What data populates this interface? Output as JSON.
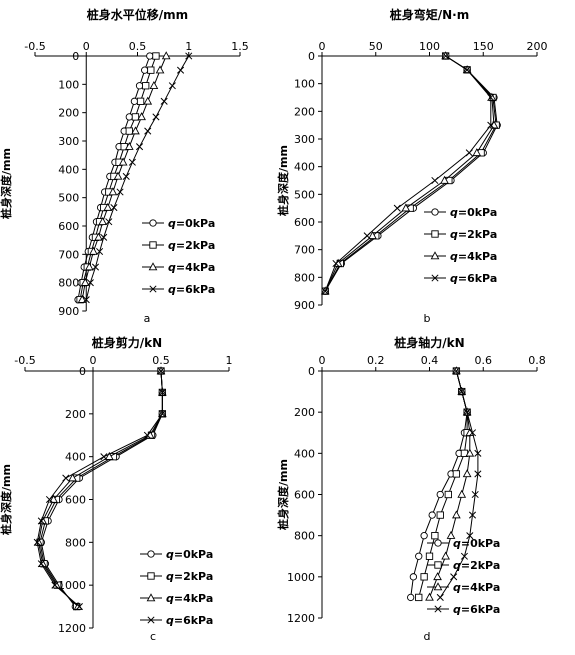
{
  "chart_data": [
    {
      "id": "a",
      "type": "line",
      "title": "桩身水平位移/mm",
      "ylabel": "桩身深度/mm",
      "sub_label": "a",
      "xlim": [
        -0.5,
        1.5
      ],
      "ylim": [
        0,
        900
      ],
      "x_ticks": [
        "-0.5",
        "0",
        "0.5",
        "1",
        "1.5"
      ],
      "y_ticks": [
        "0",
        "100",
        "200",
        "300",
        "400",
        "500",
        "600",
        "700",
        "800",
        "900"
      ],
      "series": [
        {
          "name": "q=0kPa",
          "marker": "circle",
          "points": [
            [
              0.62,
              0
            ],
            [
              0.57,
              50
            ],
            [
              0.52,
              105
            ],
            [
              0.47,
              160
            ],
            [
              0.42,
              215
            ],
            [
              0.37,
              265
            ],
            [
              0.32,
              320
            ],
            [
              0.28,
              375
            ],
            [
              0.23,
              425
            ],
            [
              0.18,
              480
            ],
            [
              0.14,
              535
            ],
            [
              0.1,
              585
            ],
            [
              0.06,
              640
            ],
            [
              0.02,
              690
            ],
            [
              -0.02,
              745
            ],
            [
              -0.05,
              800
            ],
            [
              -0.08,
              860
            ]
          ]
        },
        {
          "name": "q=2kPa",
          "marker": "square",
          "points": [
            [
              0.68,
              0
            ],
            [
              0.63,
              50
            ],
            [
              0.58,
              105
            ],
            [
              0.53,
              160
            ],
            [
              0.48,
              215
            ],
            [
              0.42,
              265
            ],
            [
              0.37,
              320
            ],
            [
              0.32,
              375
            ],
            [
              0.27,
              425
            ],
            [
              0.22,
              480
            ],
            [
              0.17,
              535
            ],
            [
              0.13,
              585
            ],
            [
              0.09,
              640
            ],
            [
              0.05,
              690
            ],
            [
              0.01,
              745
            ],
            [
              -0.03,
              800
            ],
            [
              -0.06,
              860
            ]
          ]
        },
        {
          "name": "q=4kPa",
          "marker": "triangle",
          "points": [
            [
              0.78,
              0
            ],
            [
              0.72,
              50
            ],
            [
              0.66,
              105
            ],
            [
              0.6,
              160
            ],
            [
              0.54,
              215
            ],
            [
              0.48,
              265
            ],
            [
              0.42,
              320
            ],
            [
              0.36,
              375
            ],
            [
              0.31,
              425
            ],
            [
              0.26,
              480
            ],
            [
              0.21,
              535
            ],
            [
              0.16,
              585
            ],
            [
              0.12,
              640
            ],
            [
              0.07,
              690
            ],
            [
              0.03,
              745
            ],
            [
              -0.01,
              800
            ],
            [
              -0.04,
              860
            ]
          ]
        },
        {
          "name": "q=6kPa",
          "marker": "cross",
          "points": [
            [
              1.0,
              0
            ],
            [
              0.92,
              50
            ],
            [
              0.84,
              105
            ],
            [
              0.76,
              160
            ],
            [
              0.68,
              215
            ],
            [
              0.6,
              265
            ],
            [
              0.52,
              320
            ],
            [
              0.45,
              375
            ],
            [
              0.39,
              425
            ],
            [
              0.33,
              480
            ],
            [
              0.27,
              535
            ],
            [
              0.22,
              585
            ],
            [
              0.17,
              640
            ],
            [
              0.13,
              690
            ],
            [
              0.09,
              745
            ],
            [
              0.04,
              800
            ],
            [
              0.0,
              860
            ]
          ]
        }
      ]
    },
    {
      "id": "b",
      "type": "line",
      "title": "桩身弯矩/N·m",
      "ylabel": "桩身深度/mm",
      "sub_label": "b",
      "xlim": [
        0,
        200
      ],
      "ylim": [
        0,
        900
      ],
      "x_ticks": [
        "0",
        "50",
        "100",
        "150",
        "200"
      ],
      "y_ticks": [
        "0",
        "100",
        "200",
        "300",
        "400",
        "500",
        "600",
        "700",
        "800",
        "900"
      ],
      "series": [
        {
          "name": "q=0kPa",
          "marker": "circle",
          "points": [
            [
              3,
              850
            ],
            [
              18,
              750
            ],
            [
              52,
              650
            ],
            [
              85,
              550
            ],
            [
              120,
              450
            ],
            [
              150,
              350
            ],
            [
              163,
              250
            ],
            [
              160,
              150
            ],
            [
              135,
              50
            ],
            [
              115,
              0
            ]
          ]
        },
        {
          "name": "q=2kPa",
          "marker": "square",
          "points": [
            [
              3,
              850
            ],
            [
              17,
              750
            ],
            [
              50,
              650
            ],
            [
              82,
              550
            ],
            [
              118,
              450
            ],
            [
              148,
              350
            ],
            [
              162,
              250
            ],
            [
              159,
              150
            ],
            [
              135,
              50
            ],
            [
              115,
              0
            ]
          ]
        },
        {
          "name": "q=4kPa",
          "marker": "triangle",
          "points": [
            [
              3,
              850
            ],
            [
              15,
              750
            ],
            [
              47,
              650
            ],
            [
              78,
              550
            ],
            [
              114,
              450
            ],
            [
              144,
              350
            ],
            [
              160,
              250
            ],
            [
              158,
              150
            ],
            [
              135,
              50
            ],
            [
              115,
              0
            ]
          ]
        },
        {
          "name": "q=6kPa",
          "marker": "cross",
          "points": [
            [
              3,
              850
            ],
            [
              13,
              750
            ],
            [
              42,
              650
            ],
            [
              70,
              550
            ],
            [
              105,
              450
            ],
            [
              137,
              350
            ],
            [
              157,
              250
            ],
            [
              157,
              150
            ],
            [
              135,
              50
            ],
            [
              115,
              0
            ]
          ]
        }
      ]
    },
    {
      "id": "c",
      "type": "line",
      "title": "桩身剪力/kN",
      "ylabel": "桩身深度/mm",
      "sub_label": "c",
      "xlim": [
        -0.5,
        1
      ],
      "ylim": [
        0,
        1200
      ],
      "x_ticks": [
        "-0.5",
        "0",
        "0.5",
        "1"
      ],
      "y_ticks": [
        "0",
        "200",
        "400",
        "600",
        "800",
        "1000",
        "1200"
      ],
      "series": [
        {
          "name": "q=0kPa",
          "marker": "circle",
          "points": [
            [
              0.5,
              0
            ],
            [
              0.51,
              100
            ],
            [
              0.51,
              200
            ],
            [
              0.44,
              300
            ],
            [
              0.17,
              400
            ],
            [
              -0.1,
              500
            ],
            [
              -0.25,
              600
            ],
            [
              -0.33,
              700
            ],
            [
              -0.38,
              800
            ],
            [
              -0.35,
              900
            ],
            [
              -0.25,
              1000
            ],
            [
              -0.13,
              1100
            ]
          ]
        },
        {
          "name": "q=2kPa",
          "marker": "square",
          "points": [
            [
              0.5,
              0
            ],
            [
              0.51,
              100
            ],
            [
              0.51,
              200
            ],
            [
              0.43,
              300
            ],
            [
              0.15,
              400
            ],
            [
              -0.12,
              500
            ],
            [
              -0.27,
              600
            ],
            [
              -0.35,
              700
            ],
            [
              -0.39,
              800
            ],
            [
              -0.36,
              900
            ],
            [
              -0.26,
              1000
            ],
            [
              -0.12,
              1100
            ]
          ]
        },
        {
          "name": "q=4kPa",
          "marker": "triangle",
          "points": [
            [
              0.5,
              0
            ],
            [
              0.51,
              100
            ],
            [
              0.51,
              200
            ],
            [
              0.42,
              300
            ],
            [
              0.12,
              400
            ],
            [
              -0.15,
              500
            ],
            [
              -0.29,
              600
            ],
            [
              -0.37,
              700
            ],
            [
              -0.4,
              800
            ],
            [
              -0.37,
              900
            ],
            [
              -0.27,
              1000
            ],
            [
              -0.11,
              1100
            ]
          ]
        },
        {
          "name": "q=6kPa",
          "marker": "cross",
          "points": [
            [
              0.5,
              0
            ],
            [
              0.51,
              100
            ],
            [
              0.51,
              200
            ],
            [
              0.4,
              300
            ],
            [
              0.08,
              400
            ],
            [
              -0.2,
              500
            ],
            [
              -0.32,
              600
            ],
            [
              -0.38,
              700
            ],
            [
              -0.41,
              800
            ],
            [
              -0.38,
              900
            ],
            [
              -0.28,
              1000
            ],
            [
              -0.1,
              1100
            ]
          ]
        }
      ]
    },
    {
      "id": "d",
      "type": "line",
      "title": "桩身轴力/kN",
      "ylabel": "桩身深度/mm",
      "sub_label": "d",
      "xlim": [
        0,
        0.8
      ],
      "ylim": [
        0,
        1200
      ],
      "x_ticks": [
        "0",
        "0.2",
        "0.4",
        "0.6",
        "0.8"
      ],
      "y_ticks": [
        "0",
        "200",
        "400",
        "600",
        "800",
        "1000",
        "1200"
      ],
      "series": [
        {
          "name": "q=0kPa",
          "marker": "circle",
          "points": [
            [
              0.5,
              0
            ],
            [
              0.52,
              100
            ],
            [
              0.54,
              200
            ],
            [
              0.53,
              300
            ],
            [
              0.51,
              400
            ],
            [
              0.48,
              500
            ],
            [
              0.44,
              600
            ],
            [
              0.41,
              700
            ],
            [
              0.38,
              800
            ],
            [
              0.36,
              900
            ],
            [
              0.34,
              1000
            ],
            [
              0.33,
              1100
            ]
          ]
        },
        {
          "name": "q=2kPa",
          "marker": "square",
          "points": [
            [
              0.5,
              0
            ],
            [
              0.52,
              100
            ],
            [
              0.54,
              200
            ],
            [
              0.54,
              300
            ],
            [
              0.53,
              400
            ],
            [
              0.5,
              500
            ],
            [
              0.47,
              600
            ],
            [
              0.44,
              700
            ],
            [
              0.42,
              800
            ],
            [
              0.4,
              900
            ],
            [
              0.38,
              1000
            ],
            [
              0.36,
              1100
            ]
          ]
        },
        {
          "name": "q=4kPa",
          "marker": "triangle",
          "points": [
            [
              0.5,
              0
            ],
            [
              0.52,
              100
            ],
            [
              0.54,
              200
            ],
            [
              0.55,
              300
            ],
            [
              0.55,
              400
            ],
            [
              0.54,
              500
            ],
            [
              0.52,
              600
            ],
            [
              0.5,
              700
            ],
            [
              0.48,
              800
            ],
            [
              0.46,
              900
            ],
            [
              0.43,
              1000
            ],
            [
              0.4,
              1100
            ]
          ]
        },
        {
          "name": "q=6kPa",
          "marker": "cross",
          "points": [
            [
              0.5,
              0
            ],
            [
              0.52,
              100
            ],
            [
              0.54,
              200
            ],
            [
              0.56,
              300
            ],
            [
              0.58,
              400
            ],
            [
              0.58,
              500
            ],
            [
              0.57,
              600
            ],
            [
              0.56,
              700
            ],
            [
              0.55,
              800
            ],
            [
              0.53,
              900
            ],
            [
              0.49,
              1000
            ],
            [
              0.44,
              1100
            ]
          ]
        }
      ]
    }
  ]
}
